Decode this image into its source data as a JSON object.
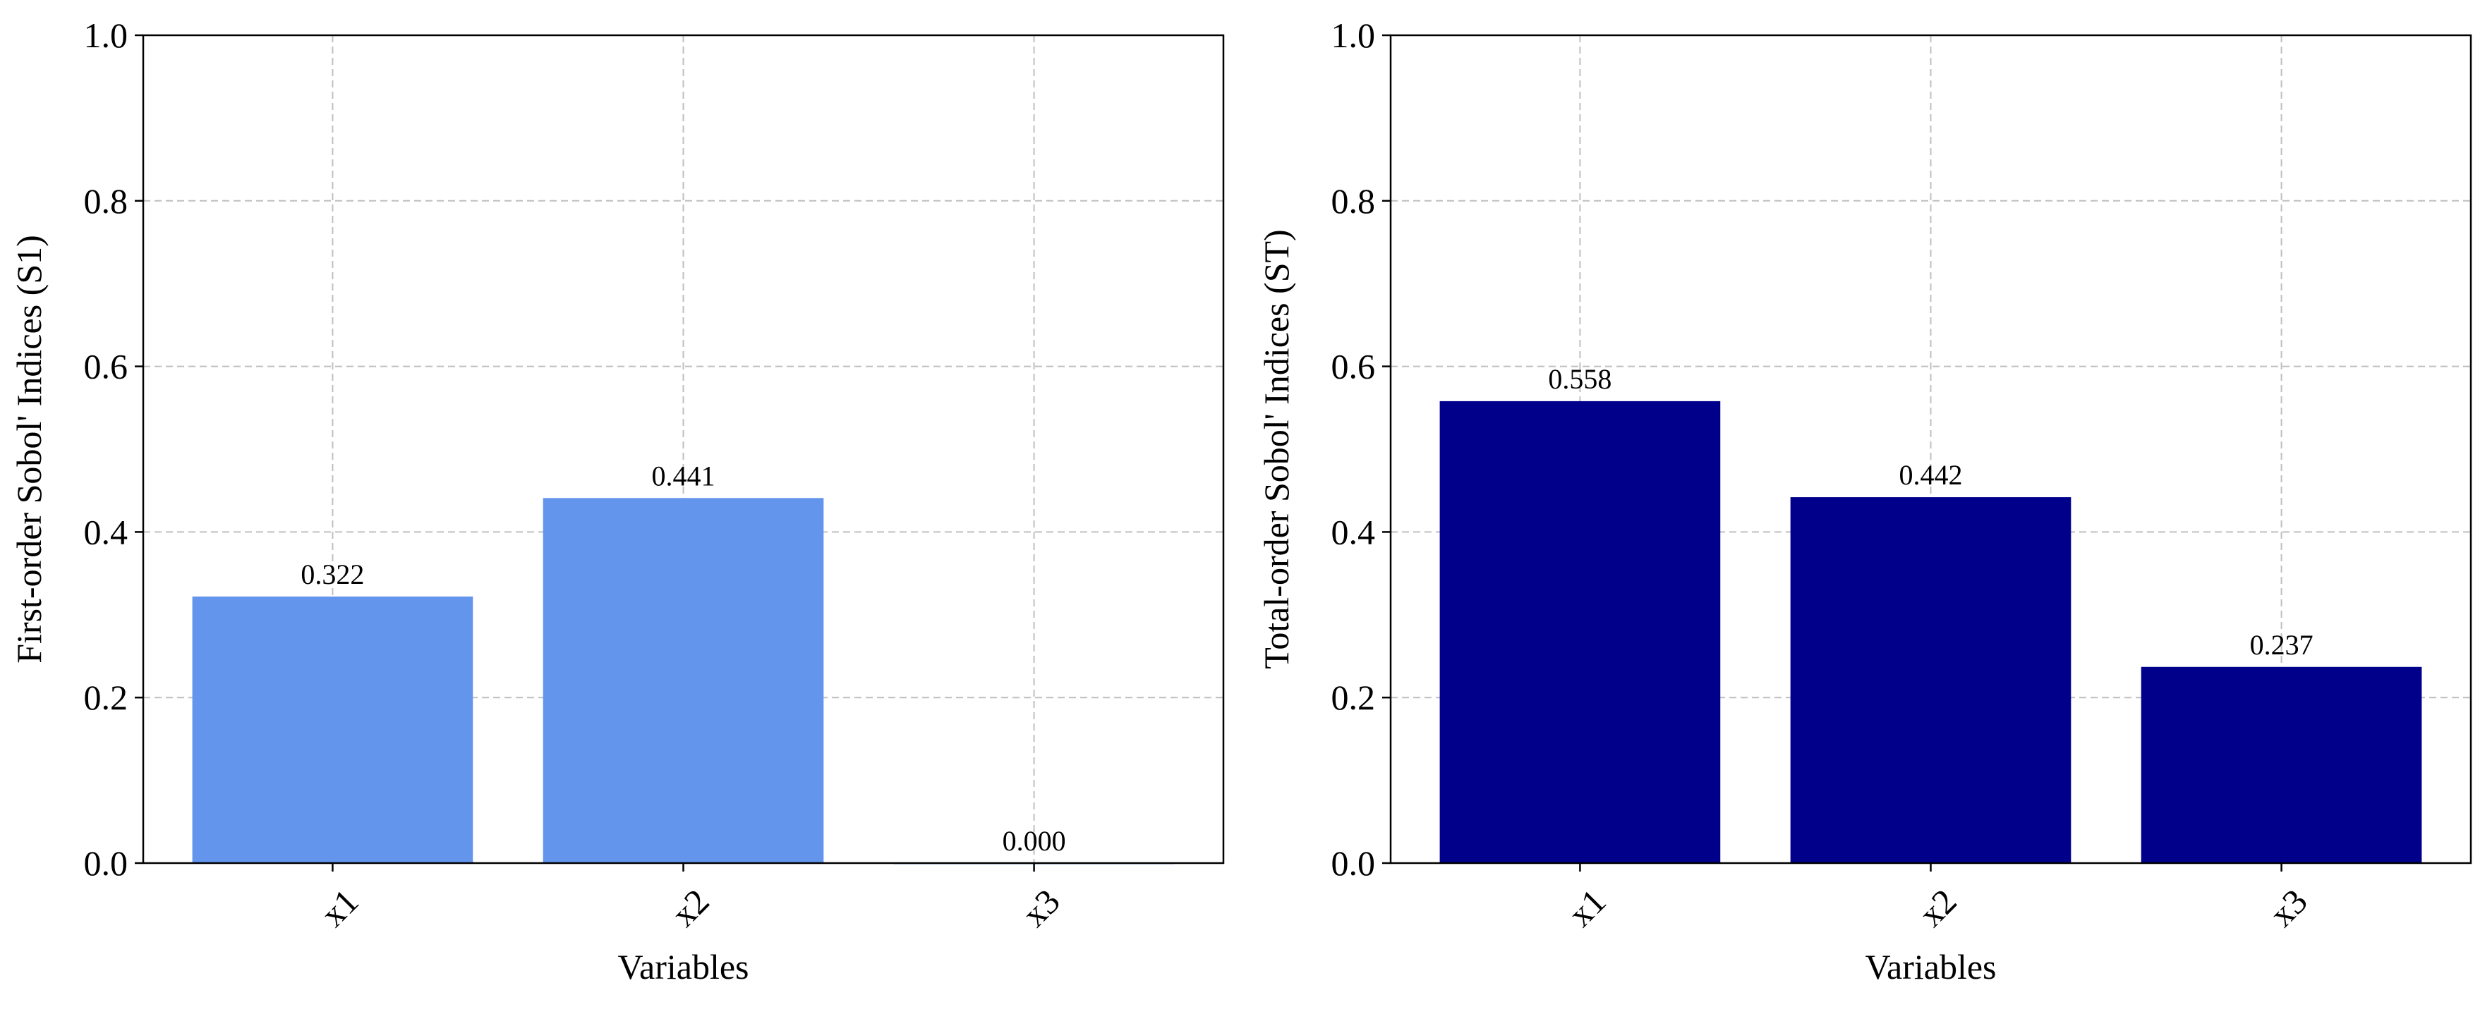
{
  "chart_data": [
    {
      "type": "bar",
      "title": "",
      "categories": [
        "x1",
        "x2",
        "x3"
      ],
      "values": [
        0.322,
        0.441,
        0.0
      ],
      "data_labels": [
        "0.322",
        "0.441",
        "0.000"
      ],
      "xlabel": "Variables",
      "ylabel": "First-order Sobol' Indices (S1)",
      "ylim": [
        0,
        1.0
      ],
      "yticks": [
        0.0,
        0.2,
        0.4,
        0.6,
        0.8,
        1.0
      ],
      "ytick_labels": [
        "0.0",
        "0.2",
        "0.4",
        "0.6",
        "0.8",
        "1.0"
      ],
      "grid": true,
      "color": "#6495ED",
      "legend": "none"
    },
    {
      "type": "bar",
      "title": "",
      "categories": [
        "x1",
        "x2",
        "x3"
      ],
      "values": [
        0.558,
        0.442,
        0.237
      ],
      "data_labels": [
        "0.558",
        "0.442",
        "0.237"
      ],
      "xlabel": "Variables",
      "ylabel": "Total-order Sobol' Indices (ST)",
      "ylim": [
        0,
        1.0
      ],
      "yticks": [
        0.0,
        0.2,
        0.4,
        0.6,
        0.8,
        1.0
      ],
      "ytick_labels": [
        "0.0",
        "0.2",
        "0.4",
        "0.6",
        "0.8",
        "1.0"
      ],
      "grid": true,
      "color": "#00008B",
      "legend": "none"
    }
  ]
}
